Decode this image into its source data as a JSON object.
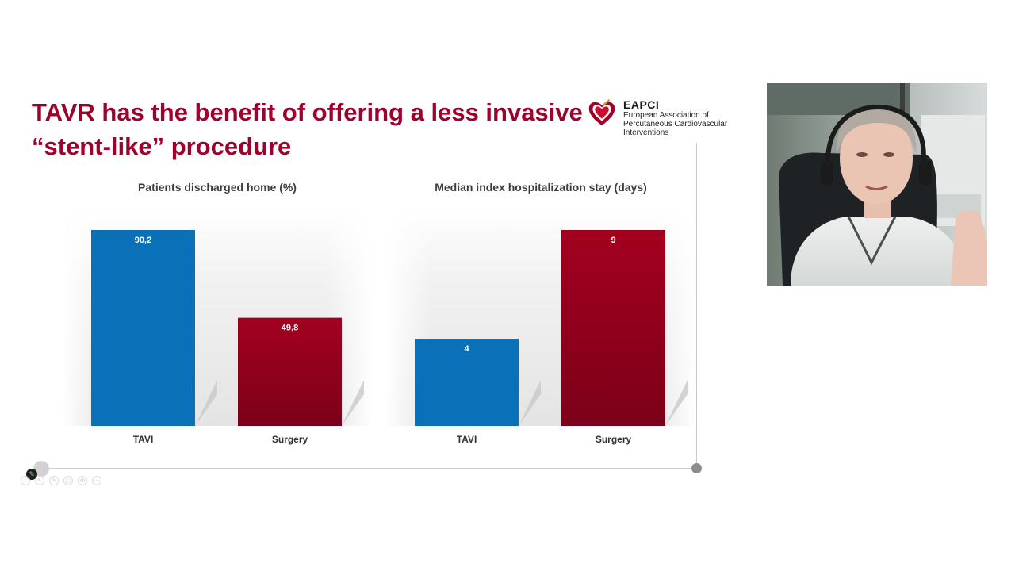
{
  "slide": {
    "title_line1": "TAVR has the benefit of offering a less  invasive",
    "title_line2": "“stent-like” procedure"
  },
  "logo": {
    "name": "EAPCI",
    "line1": "European Association of",
    "line2": "Percutaneous Cardiovascular",
    "line3": "Interventions"
  },
  "colors": {
    "title": "#a0002c",
    "tavi": "#0a71b9",
    "surgery": "#a3001f"
  },
  "chart_data": [
    {
      "type": "bar",
      "title": "Patients discharged home (%)",
      "categories": [
        "TAVI",
        "Surgery"
      ],
      "values": [
        90.2,
        49.8
      ],
      "labels": [
        "90,2",
        "49,8"
      ],
      "ylim": [
        0,
        90.2
      ],
      "colors": [
        "#0a71b9",
        "#a3001f"
      ],
      "grid": false,
      "legend": "none"
    },
    {
      "type": "bar",
      "title": "Median index hospitalization stay (days)",
      "categories": [
        "TAVI",
        "Surgery"
      ],
      "values": [
        4,
        9
      ],
      "labels": [
        "4",
        "9"
      ],
      "ylim": [
        0,
        9
      ],
      "colors": [
        "#0a71b9",
        "#a3001f"
      ],
      "grid": false,
      "legend": "none"
    }
  ],
  "player": {
    "pen_icon": "pen-icon",
    "toolbar_icons": [
      "back-icon",
      "pointer-icon",
      "pen-icon",
      "layout-icon",
      "zoom-icon",
      "more-icon"
    ]
  }
}
